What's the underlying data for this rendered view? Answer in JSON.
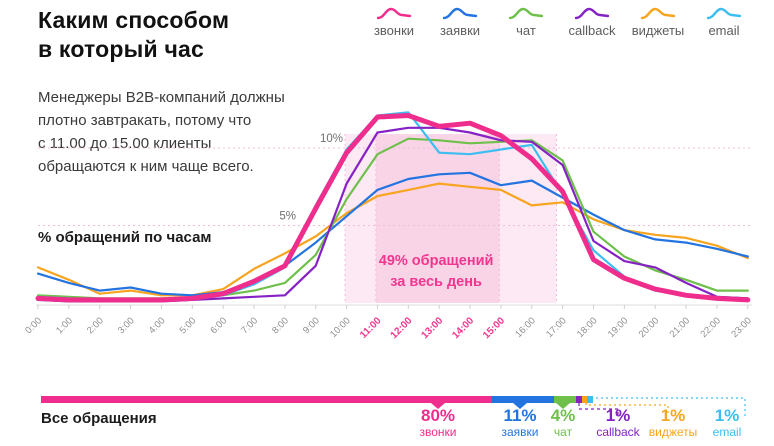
{
  "title": {
    "line1": "Каким способом",
    "line2": "в который час"
  },
  "description": {
    "line1": "Менеджеры B2B-компаний должны",
    "line2": "плотно завтракать, потому что",
    "line3": "с 11.00 до 15.00 клиенты",
    "line4": "обращаются к ним чаще всего."
  },
  "legend": {
    "items": [
      {
        "id": "calls",
        "label": "звонки",
        "color": "#ef2d8c"
      },
      {
        "id": "forms",
        "label": "заявки",
        "color": "#2374e1"
      },
      {
        "id": "chat",
        "label": "чат",
        "color": "#6ec04b"
      },
      {
        "id": "callback",
        "label": "callback",
        "color": "#8621c4"
      },
      {
        "id": "widgets",
        "label": "виджеты",
        "color": "#f7a420"
      },
      {
        "id": "email",
        "label": "email",
        "color": "#3dbef1"
      }
    ]
  },
  "chart_data": {
    "type": "line",
    "ylabel": "% обращений по часам",
    "x_labels": [
      "0:00",
      "1:00",
      "2:00",
      "3:00",
      "4:00",
      "5:00",
      "6:00",
      "7:00",
      "8:00",
      "9:00",
      "10:00",
      "11:00",
      "12:00",
      "13:00",
      "14:00",
      "15:00",
      "16:00",
      "17:00",
      "18:00",
      "19:00",
      "20:00",
      "21:00",
      "22:00",
      "23:00"
    ],
    "highlighted_x_labels": [
      "11:00",
      "12:00",
      "13:00",
      "14:00",
      "15:00"
    ],
    "ylim": [
      0,
      13
    ],
    "gridlines": [
      {
        "label": "5%",
        "value": 5
      },
      {
        "label": "10%",
        "value": 10
      }
    ],
    "highlight_bands": [
      {
        "from_hour": 9.95,
        "to_hour": 16.8,
        "color": "#fce9f3"
      },
      {
        "from_hour": 10.95,
        "to_hour": 14.95,
        "color": "#f9d4e7"
      }
    ],
    "band_top_value": 10.9,
    "annotation": {
      "line1": "49% обращений",
      "line2": "за весь день",
      "color": "#f0368f",
      "at_hour": 12.9
    },
    "series": [
      {
        "id": "widgets",
        "name": "виджеты",
        "color": "#f7a420",
        "stroke_width": 2.2,
        "values": [
          2.3,
          1.5,
          0.6,
          0.8,
          0.5,
          0.5,
          0.9,
          2.2,
          3.2,
          4.3,
          5.8,
          6.9,
          7.3,
          7.7,
          7.5,
          7.3,
          6.3,
          6.5,
          5.4,
          4.7,
          4.4,
          4.2,
          3.7,
          2.9
        ]
      },
      {
        "id": "forms",
        "name": "заявки",
        "color": "#2374e1",
        "stroke_width": 2.2,
        "values": [
          1.9,
          1.3,
          0.8,
          1.0,
          0.6,
          0.5,
          0.7,
          1.4,
          2.4,
          3.9,
          5.6,
          7.3,
          8.0,
          8.3,
          8.4,
          7.6,
          7.9,
          6.8,
          5.7,
          4.7,
          4.1,
          3.9,
          3.5,
          3.0
        ]
      },
      {
        "id": "chat",
        "name": "чат",
        "color": "#6ec04b",
        "stroke_width": 2.2,
        "values": [
          0.5,
          0.4,
          0.3,
          0.3,
          0.3,
          0.3,
          0.5,
          0.8,
          1.3,
          3.1,
          6.7,
          9.6,
          10.6,
          10.5,
          10.3,
          10.4,
          10.5,
          9.2,
          4.6,
          3.0,
          2.1,
          1.5,
          0.8,
          0.8
        ]
      },
      {
        "id": "email",
        "name": "email",
        "color": "#3dbef1",
        "stroke_width": 2.2,
        "values": [
          0.4,
          0.3,
          0.2,
          0.2,
          0.2,
          0.3,
          0.5,
          1.2,
          2.3,
          6.3,
          9.9,
          12.1,
          12.3,
          9.7,
          9.6,
          9.9,
          10.2,
          7.0,
          3.4,
          1.7,
          0.8,
          0.5,
          0.4,
          0.3
        ]
      },
      {
        "id": "callback",
        "name": "callback",
        "color": "#8621c4",
        "stroke_width": 2.2,
        "values": [
          0.2,
          0.1,
          0.1,
          0.1,
          0.1,
          0.2,
          0.3,
          0.4,
          0.5,
          2.4,
          7.7,
          11.0,
          11.3,
          11.3,
          11.0,
          10.5,
          10.4,
          8.9,
          4.0,
          2.7,
          2.3,
          1.3,
          0.4,
          0.3
        ]
      },
      {
        "id": "calls",
        "name": "звонки",
        "color": "#ef2d8c",
        "stroke_width": 5,
        "values": [
          0.3,
          0.2,
          0.2,
          0.2,
          0.2,
          0.3,
          0.6,
          1.4,
          2.4,
          6.1,
          9.7,
          12.0,
          12.1,
          11.4,
          11.6,
          10.8,
          9.3,
          7.2,
          2.8,
          1.6,
          0.9,
          0.5,
          0.3,
          0.2
        ]
      }
    ]
  },
  "summary_bar": {
    "label": "Все обращения",
    "segments": [
      {
        "id": "calls",
        "percent": "80%",
        "value": 80,
        "name": "звонки",
        "color": "#ef2d8c"
      },
      {
        "id": "forms",
        "percent": "11%",
        "value": 11,
        "name": "заявки",
        "color": "#2374e1"
      },
      {
        "id": "chat",
        "percent": "4%",
        "value": 4,
        "name": "чат",
        "color": "#6ec04b"
      },
      {
        "id": "callback",
        "percent": "1%",
        "value": 1,
        "name": "callback",
        "color": "#8621c4"
      },
      {
        "id": "widgets",
        "percent": "1%",
        "value": 1,
        "name": "виджеты",
        "color": "#f7a420"
      },
      {
        "id": "email",
        "percent": "1%",
        "value": 1,
        "name": "email",
        "color": "#3dbef1"
      }
    ]
  }
}
